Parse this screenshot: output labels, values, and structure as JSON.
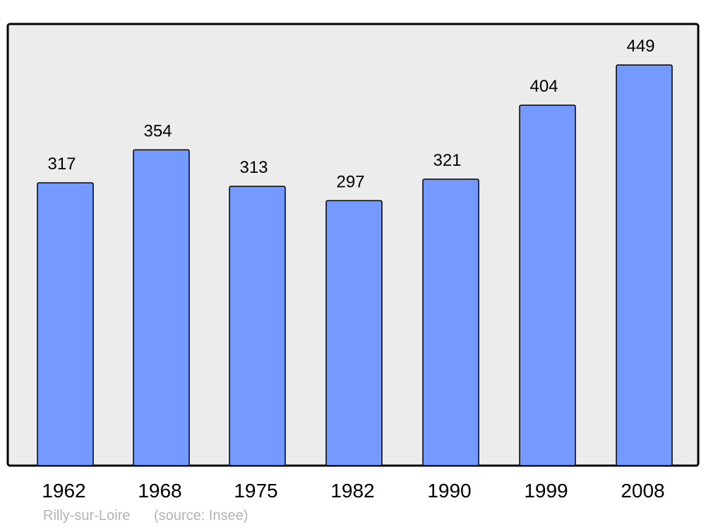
{
  "chart_data": {
    "type": "bar",
    "categories": [
      "1962",
      "1968",
      "1975",
      "1982",
      "1990",
      "1999",
      "2008"
    ],
    "values": [
      317,
      354,
      313,
      297,
      321,
      404,
      449
    ],
    "title": "",
    "xlabel": "",
    "ylabel": "",
    "ylim": [
      0,
      495
    ],
    "grid": false,
    "data_labels": true,
    "colors": {
      "bar": "#7499ff",
      "background": "#ececec",
      "frame": "#000000"
    }
  },
  "footer": {
    "place": "Rilly-sur-Loire",
    "source": "(source: Insee)"
  }
}
